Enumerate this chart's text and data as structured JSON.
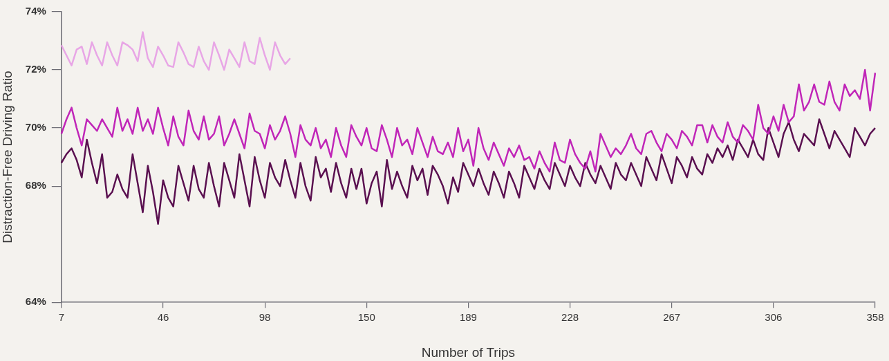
{
  "chart_data": {
    "type": "line",
    "xlabel": "Number of Trips",
    "ylabel": "Distraction-Free Driving Ratio",
    "categories": [
      "7",
      null,
      null,
      null,
      null,
      null,
      null,
      null,
      null,
      null,
      null,
      null,
      null,
      null,
      null,
      null,
      null,
      null,
      null,
      null,
      "46",
      null,
      null,
      null,
      null,
      null,
      null,
      null,
      null,
      null,
      null,
      null,
      null,
      null,
      null,
      null,
      null,
      null,
      null,
      null,
      "98",
      null,
      null,
      null,
      null,
      null,
      null,
      null,
      null,
      null,
      null,
      null,
      null,
      null,
      null,
      null,
      null,
      null,
      null,
      null,
      "150",
      null,
      null,
      null,
      null,
      null,
      null,
      null,
      null,
      null,
      null,
      null,
      null,
      null,
      null,
      null,
      null,
      null,
      null,
      null,
      "189",
      null,
      null,
      null,
      null,
      null,
      null,
      null,
      null,
      null,
      null,
      null,
      null,
      null,
      null,
      null,
      null,
      null,
      null,
      null,
      "228",
      null,
      null,
      null,
      null,
      null,
      null,
      null,
      null,
      null,
      null,
      null,
      null,
      null,
      null,
      null,
      null,
      null,
      null,
      null,
      "267",
      null,
      null,
      null,
      null,
      null,
      null,
      null,
      null,
      null,
      null,
      null,
      null,
      null,
      null,
      null,
      null,
      null,
      null,
      null,
      "306",
      null,
      null,
      null,
      null,
      null,
      null,
      null,
      null,
      null,
      null,
      null,
      null,
      null,
      null,
      null,
      null,
      null,
      null,
      null,
      "358"
    ],
    "series": [
      {
        "color": "#e8a6e6",
        "values": [
          72.85,
          72.5,
          72.15,
          72.7,
          72.8,
          72.2,
          72.95,
          72.5,
          72.15,
          72.95,
          72.5,
          72.15,
          72.95,
          72.85,
          72.7,
          72.3,
          73.3,
          72.4,
          72.1,
          72.8,
          72.5,
          72.15,
          72.1,
          72.95,
          72.6,
          72.2,
          72.1,
          72.8,
          72.3,
          72.0,
          72.95,
          72.5,
          72.0,
          72.7,
          72.4,
          72.1,
          72.95,
          72.3,
          72.2,
          73.1,
          72.5,
          72.0,
          72.95,
          72.5,
          72.2,
          72.4,
          null,
          null,
          null,
          null,
          null,
          null,
          null,
          null,
          null,
          null,
          null,
          null,
          null,
          null,
          null,
          null,
          null,
          null,
          null,
          null,
          null,
          null,
          null,
          null,
          null,
          null,
          null,
          null,
          null,
          null,
          null,
          null,
          null,
          null,
          null,
          null,
          null,
          null,
          null,
          null,
          null,
          null,
          null,
          null,
          null,
          null,
          null,
          null,
          null,
          null,
          null,
          null,
          null,
          null,
          null,
          null,
          null,
          null,
          null,
          null,
          null,
          null,
          null,
          null,
          null,
          null,
          null,
          null,
          null,
          null,
          null,
          null,
          null,
          null,
          null,
          null,
          null,
          null,
          null,
          null,
          null,
          null,
          null,
          null,
          null,
          null,
          null,
          null,
          null,
          null,
          null,
          null,
          null,
          null,
          null,
          null,
          null,
          null,
          null,
          null,
          null,
          null,
          null,
          null,
          null,
          null,
          null,
          null,
          null,
          null,
          null,
          null,
          null,
          null,
          null
        ]
      },
      {
        "color": "#c026b8",
        "values": [
          69.8,
          70.3,
          70.7,
          70.0,
          69.4,
          70.3,
          70.1,
          69.9,
          70.3,
          70.0,
          69.7,
          70.7,
          69.9,
          70.3,
          69.8,
          70.7,
          69.9,
          70.3,
          69.8,
          70.7,
          70.0,
          69.4,
          70.4,
          69.7,
          69.4,
          70.6,
          69.9,
          69.6,
          70.4,
          69.6,
          69.8,
          70.4,
          69.4,
          69.8,
          70.3,
          69.8,
          69.3,
          70.5,
          69.9,
          69.8,
          69.3,
          70.1,
          69.6,
          69.9,
          70.4,
          69.8,
          69.0,
          70.1,
          69.6,
          69.4,
          70.0,
          69.3,
          69.6,
          69.0,
          70.0,
          69.4,
          69.0,
          70.1,
          69.7,
          69.4,
          70.0,
          69.3,
          69.2,
          70.1,
          69.6,
          69.0,
          70.0,
          69.4,
          69.6,
          69.1,
          70.0,
          69.5,
          69.0,
          69.7,
          69.2,
          69.1,
          69.5,
          69.0,
          70.0,
          69.2,
          69.6,
          68.7,
          70.0,
          69.3,
          68.9,
          69.5,
          69.1,
          68.7,
          69.3,
          69.0,
          69.4,
          68.9,
          69.0,
          68.6,
          69.2,
          68.8,
          68.5,
          69.5,
          68.9,
          68.8,
          69.6,
          69.1,
          68.8,
          68.6,
          69.2,
          68.5,
          69.8,
          69.4,
          69.0,
          69.3,
          69.1,
          69.4,
          69.8,
          69.3,
          69.1,
          69.8,
          69.9,
          69.5,
          69.2,
          69.8,
          69.6,
          69.3,
          69.9,
          69.7,
          69.4,
          70.1,
          70.1,
          69.5,
          70.1,
          69.7,
          69.5,
          70.2,
          69.7,
          69.5,
          70.1,
          69.9,
          69.6,
          70.8,
          70.0,
          69.8,
          70.4,
          69.9,
          70.8,
          70.2,
          70.4,
          71.5,
          70.6,
          70.9,
          71.5,
          70.9,
          70.8,
          71.6,
          70.9,
          70.6,
          71.5,
          71.1,
          71.3,
          71.0,
          72.0,
          70.6,
          71.9
        ]
      },
      {
        "color": "#5a1050",
        "values": [
          68.8,
          69.1,
          69.3,
          68.9,
          68.3,
          69.6,
          68.8,
          68.1,
          69.1,
          67.6,
          67.8,
          68.4,
          67.9,
          67.6,
          69.1,
          68.1,
          67.1,
          68.7,
          67.8,
          66.7,
          68.2,
          67.6,
          67.3,
          68.7,
          68.1,
          67.5,
          68.7,
          67.9,
          67.6,
          68.8,
          68.0,
          67.3,
          68.8,
          68.2,
          67.6,
          69.1,
          68.2,
          67.3,
          69.0,
          68.2,
          67.6,
          68.8,
          68.3,
          68.0,
          68.9,
          68.2,
          67.6,
          68.8,
          68.0,
          67.5,
          69.0,
          68.3,
          68.6,
          67.8,
          68.8,
          68.1,
          67.6,
          68.6,
          67.9,
          68.6,
          67.4,
          68.1,
          68.5,
          67.3,
          68.9,
          67.9,
          68.5,
          68.0,
          67.6,
          68.7,
          68.2,
          68.6,
          67.7,
          68.7,
          68.4,
          68.0,
          67.4,
          68.3,
          67.8,
          68.8,
          68.4,
          68.0,
          68.6,
          68.1,
          67.7,
          68.5,
          68.1,
          67.6,
          68.5,
          68.1,
          67.6,
          68.7,
          68.3,
          67.9,
          68.6,
          68.2,
          67.9,
          68.8,
          68.4,
          68.0,
          68.7,
          68.3,
          68.0,
          68.8,
          68.4,
          68.1,
          68.7,
          68.3,
          67.9,
          68.8,
          68.4,
          68.2,
          68.8,
          68.4,
          68.0,
          69.0,
          68.6,
          68.2,
          69.1,
          68.6,
          68.1,
          69.0,
          68.7,
          68.3,
          69.0,
          68.6,
          68.4,
          69.1,
          68.8,
          69.3,
          69.0,
          69.4,
          68.9,
          69.6,
          69.3,
          69.0,
          69.6,
          69.1,
          68.9,
          70.0,
          69.5,
          69.0,
          69.8,
          70.2,
          69.6,
          69.2,
          69.8,
          69.6,
          69.4,
          70.3,
          69.8,
          69.3,
          69.9,
          69.6,
          69.3,
          69.0,
          70.0,
          69.7,
          69.4,
          69.8,
          70.0
        ]
      }
    ],
    "ylim": [
      64,
      74
    ],
    "yticks": [
      {
        "value": 64,
        "label": "64%"
      },
      {
        "value": 68,
        "label": "68%"
      },
      {
        "value": 70,
        "label": "70%"
      },
      {
        "value": 72,
        "label": "72%"
      },
      {
        "value": 74,
        "label": "74%"
      }
    ],
    "grid": false,
    "legend": false,
    "marker": "none",
    "line_style": "solid"
  }
}
